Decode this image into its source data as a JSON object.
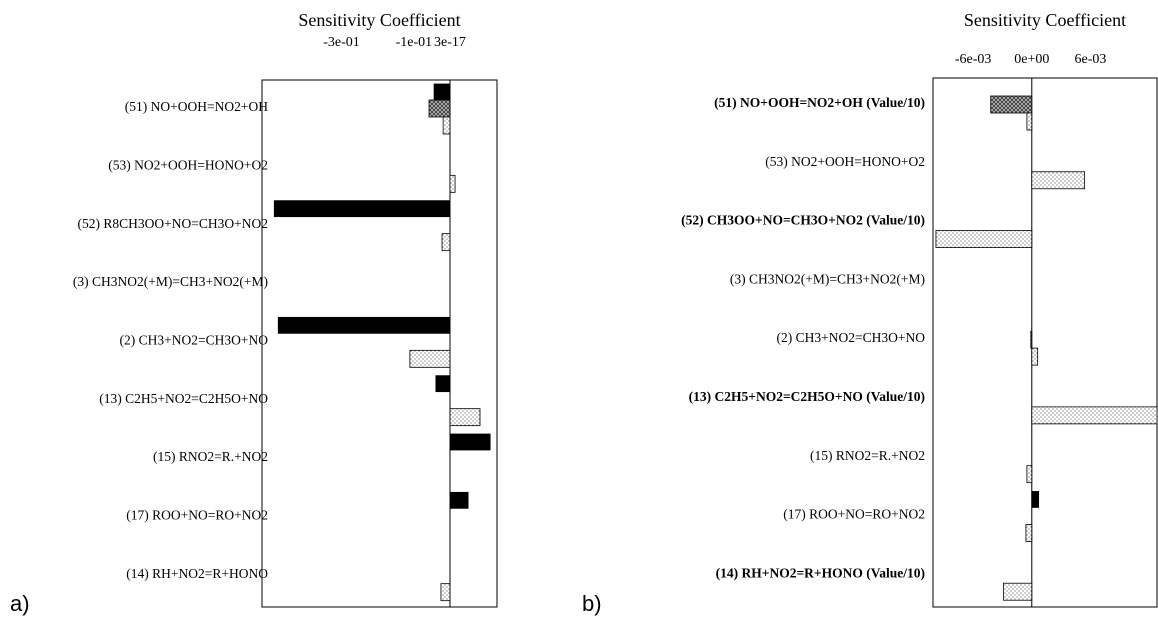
{
  "chart_data": [
    {
      "type": "hbar",
      "panel_label": "a)",
      "title": "Sensitivity Coefficient",
      "categories": [
        "(51) NO+OOH=NO2+OH",
        "(53) NO2+OOH=HONO+O2",
        "(52) R8CH3OO+NO=CH3O+NO2",
        "(3) CH3NO2(+M)=CH3+NO2(+M)",
        "(2) CH3+NO2=CH3O+NO",
        "(13) C2H5+NO2=C2H5O+NO",
        "(15) RNO2=R.+NO2",
        "(17) ROO+NO=RO+NO2",
        "(14) RH+NO2=R+HONO"
      ],
      "bold": [
        false,
        false,
        false,
        false,
        false,
        false,
        false,
        false,
        false
      ],
      "series": [
        {
          "color": "#000000",
          "pattern": "solid",
          "values": [
            -0.044,
            0,
            -0.486,
            0,
            -0.475,
            -0.039,
            0.111,
            0.05,
            0
          ]
        },
        {
          "color": "#000000",
          "pattern": "hatch",
          "values": [
            -0.058,
            0,
            0,
            0,
            0,
            0,
            0,
            0,
            0
          ]
        },
        {
          "color": "#000000",
          "pattern": "dots",
          "values": [
            -0.019,
            0.014,
            -0.022,
            0,
            -0.111,
            0.083,
            0,
            0,
            -0.025
          ]
        }
      ],
      "xlim": [
        -0.52,
        0.13
      ],
      "xticks": [
        {
          "value": -0.3,
          "label": "-3e-01"
        },
        {
          "value": -0.1,
          "label": "-1e-01"
        },
        {
          "value": 3e-17,
          "label": "3e-17"
        }
      ]
    },
    {
      "type": "hbar",
      "panel_label": "b)",
      "title": "Sensitivity Coefficient",
      "categories": [
        "(51) NO+OOH=NO2+OH (Value/10)",
        "(53) NO2+OOH=HONO+O2",
        "(52) CH3OO+NO=CH3O+NO2 (Value/10)",
        "(3) CH3NO2(+M)=CH3+NO2(+M)",
        "(2) CH3+NO2=CH3O+NO",
        "(13) C2H5+NO2=C2H5O+NO (Value/10)",
        "(15) RNO2=R.+NO2",
        "(17) ROO+NO=RO+NO2",
        "(14) RH+NO2=R+HONO (Value/10)"
      ],
      "bold": [
        true,
        false,
        true,
        false,
        false,
        true,
        false,
        false,
        true
      ],
      "series": [
        {
          "color": "#000000",
          "pattern": "solid",
          "values": [
            0,
            0,
            0,
            0,
            0,
            0,
            0,
            0.0007,
            0
          ]
        },
        {
          "color": "#000000",
          "pattern": "hatch",
          "values": [
            -0.0042,
            0,
            0,
            0,
            -0.0001,
            0,
            0,
            0,
            0
          ]
        },
        {
          "color": "#000000",
          "pattern": "dots",
          "values": [
            -0.0005,
            0.0054,
            -0.0098,
            0,
            0.0006,
            0.0128,
            -0.0005,
            -0.0006,
            -0.0029
          ]
        }
      ],
      "xlim": [
        -0.0101,
        0.0128
      ],
      "xticks": [
        {
          "value": -0.006,
          "label": "-6e-03"
        },
        {
          "value": 0,
          "label": "0e+00"
        },
        {
          "value": 0.006,
          "label": "6e-03"
        }
      ]
    }
  ]
}
